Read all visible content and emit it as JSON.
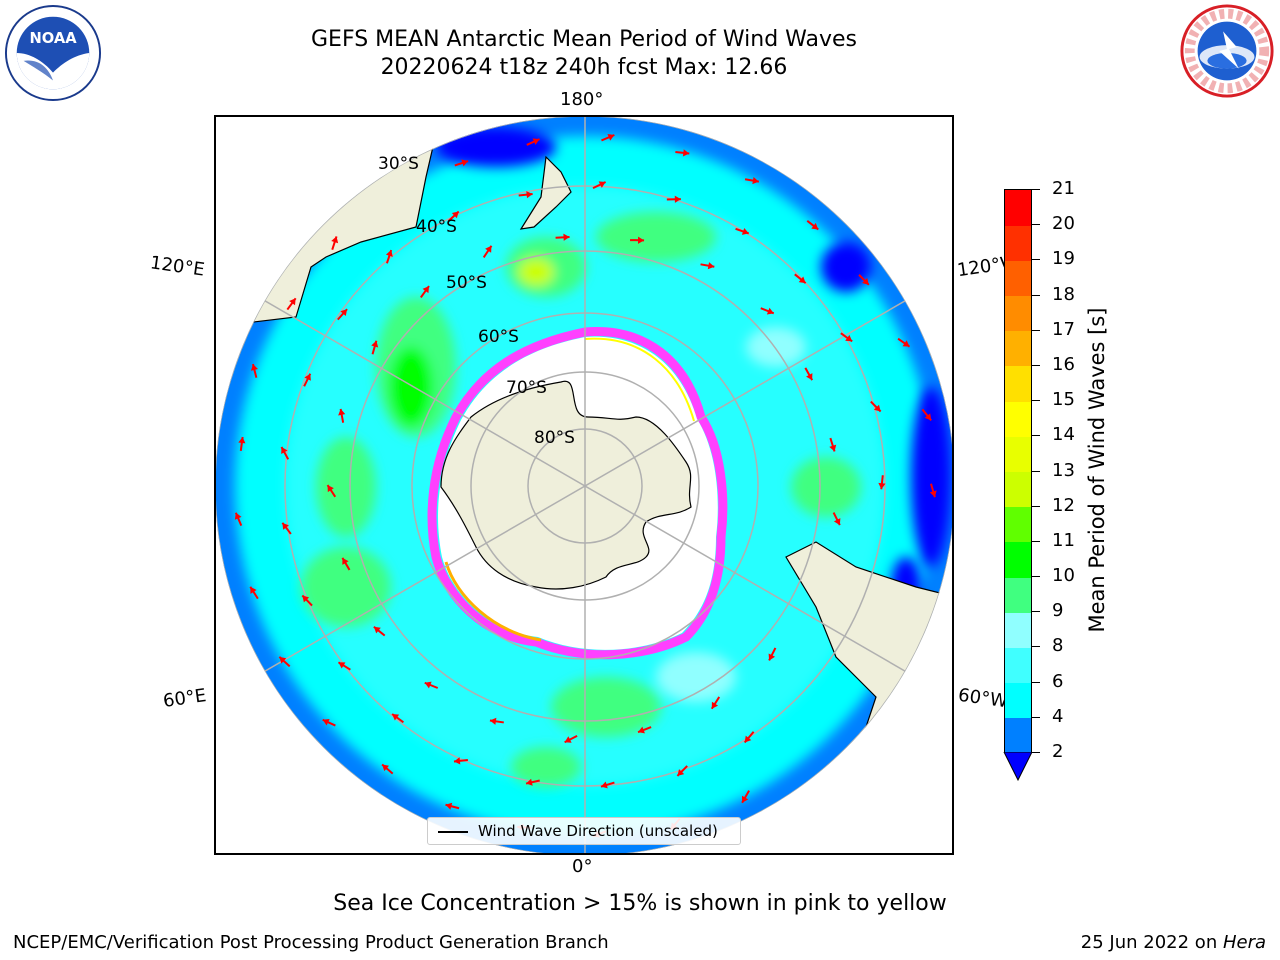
{
  "title": {
    "line1": "GEFS MEAN Antarctic Mean Period of Wind Waves",
    "line2": "20220624 t18z 240h fcst   Max: 12.66"
  },
  "logos": {
    "left": "noaa-logo",
    "left_text": "NOAA",
    "right": "nws-logo"
  },
  "map": {
    "projection": "south-polar-stereographic",
    "lon_labels": {
      "top": "180°",
      "bottom": "0°",
      "left_upper": "120°E",
      "left_lower": "60°E",
      "right_upper": "120°W",
      "right_lower": "60°W"
    },
    "lat_labels": [
      "30°S",
      "40°S",
      "50°S",
      "60°S",
      "70°S",
      "80°S"
    ],
    "ocean_colors": {
      "dark_blue": "#0000ff",
      "blue": "#0080ff",
      "cyan": "#00ffff",
      "light_cyan": "#40ffff",
      "pale_cyan": "#90ffff",
      "green_light": "#40ff80",
      "green": "#00ff00",
      "yellow_green": "#ccff00"
    },
    "land_color": "#efefdb",
    "sea_ice_colors": [
      "#ff40ff",
      "#ffb000",
      "#ffff00"
    ],
    "arrow_color": "#ff0000",
    "grid_color": "#b0b0b0"
  },
  "legend": {
    "label": "Wind Wave Direction (unscaled)"
  },
  "colorbar": {
    "title": "Mean Period of Wind Waves [s]",
    "ticks": [
      2,
      4,
      6,
      8,
      9,
      10,
      11,
      12,
      13,
      14,
      15,
      16,
      17,
      18,
      19,
      20,
      21
    ],
    "colors": [
      "#0080ff",
      "#00ffff",
      "#40ffff",
      "#90ffff",
      "#40ff80",
      "#00ff00",
      "#60ff00",
      "#ccff00",
      "#e8ff00",
      "#ffff00",
      "#ffe000",
      "#ffb000",
      "#ff8c00",
      "#ff6000",
      "#ff3000",
      "#ff0000"
    ],
    "under_color": "#0000ff"
  },
  "subtitle": "Sea Ice Concentration > 15% is shown in pink to yellow",
  "footer": {
    "left": "NCEP/EMC/Verification Post Processing Product Generation Branch",
    "date": "25 Jun 2022 on ",
    "host": "Hera"
  }
}
